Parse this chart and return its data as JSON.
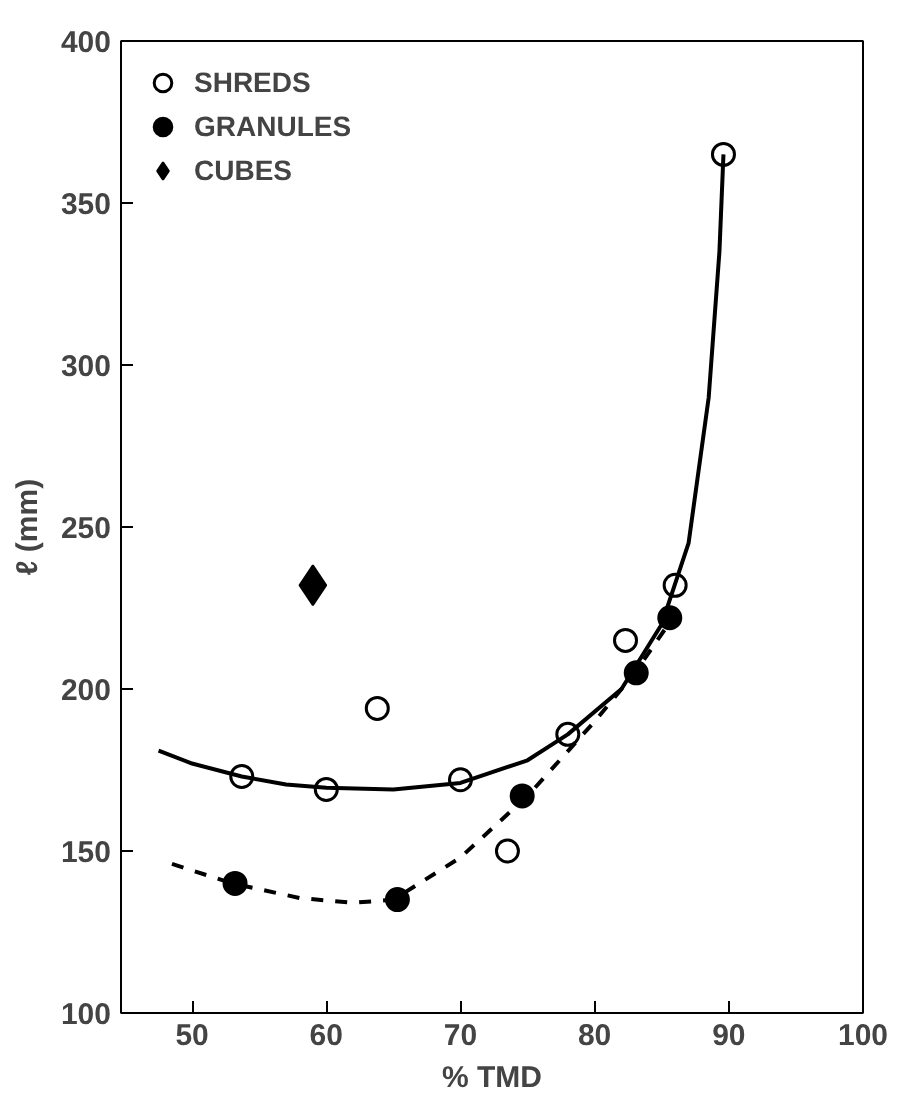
{
  "chart_data": {
    "type": "scatter",
    "xlabel": "% TMD",
    "ylabel": "ℓ (mm)",
    "xlim": [
      44.7,
      100
    ],
    "ylim": [
      100,
      400
    ],
    "xticks": [
      50,
      60,
      70,
      80,
      90,
      100
    ],
    "yticks": [
      100,
      150,
      200,
      250,
      300,
      350,
      400
    ],
    "grid": false,
    "legend": "top left",
    "series": [
      {
        "name": "SHREDS",
        "color": "#ffffff",
        "marker": "circle",
        "x": [
          53.7,
          60,
          70,
          78,
          73.5,
          63.8,
          82.3,
          86,
          89.6
        ],
        "values": [
          173,
          169,
          172,
          186,
          150,
          194,
          215,
          232,
          365
        ]
      },
      {
        "name": "GRANULES",
        "color": "#000000",
        "marker": "circle",
        "x": [
          53.2,
          65.3,
          74.6,
          83.1,
          85.6
        ],
        "values": [
          140,
          135,
          167,
          205,
          222
        ]
      },
      {
        "name": "CUBES",
        "color": "#000000",
        "marker": "diamond",
        "x": [
          59
        ],
        "values": [
          232
        ]
      },
      {
        "type": "line",
        "color": "#000000",
        "line_style": "solid",
        "x": [
          47.5,
          50,
          53.7,
          57,
          60,
          65,
          70,
          75,
          78,
          82,
          85,
          87,
          88.5,
          89.3,
          89.6
        ],
        "values": [
          181,
          177,
          173,
          170.5,
          169.5,
          169,
          171,
          178,
          186,
          200,
          220,
          245,
          290,
          335,
          365
        ]
      },
      {
        "type": "line",
        "color": "#000000",
        "line_style": "dashed",
        "x": [
          48.5,
          53,
          58,
          62,
          65,
          70,
          75,
          80,
          83,
          85.5
        ],
        "values": [
          146,
          140,
          135.5,
          134,
          135,
          148,
          167,
          190,
          205,
          220
        ]
      }
    ]
  }
}
